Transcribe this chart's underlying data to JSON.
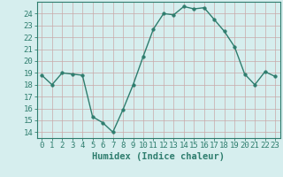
{
  "x": [
    0,
    1,
    2,
    3,
    4,
    5,
    6,
    7,
    8,
    9,
    10,
    11,
    12,
    13,
    14,
    15,
    16,
    17,
    18,
    19,
    20,
    21,
    22,
    23
  ],
  "y": [
    18.8,
    18.0,
    19.0,
    18.9,
    18.8,
    15.3,
    14.8,
    14.0,
    15.9,
    18.0,
    20.4,
    22.7,
    24.0,
    23.9,
    24.6,
    24.4,
    24.5,
    23.5,
    22.5,
    21.2,
    18.9,
    18.0,
    19.1,
    18.7
  ],
  "line_color": "#2e7d6e",
  "marker_color": "#2e7d6e",
  "bg_color": "#d6eeee",
  "grid_color": "#c8a8a8",
  "xlabel": "Humidex (Indice chaleur)",
  "xlim": [
    -0.5,
    23.5
  ],
  "ylim": [
    13.5,
    25.0
  ],
  "yticks": [
    14,
    15,
    16,
    17,
    18,
    19,
    20,
    21,
    22,
    23,
    24
  ],
  "xtick_labels": [
    "0",
    "1",
    "2",
    "3",
    "4",
    "5",
    "6",
    "7",
    "8",
    "9",
    "10",
    "11",
    "12",
    "13",
    "14",
    "15",
    "16",
    "17",
    "18",
    "19",
    "20",
    "21",
    "22",
    "23"
  ],
  "xlabel_fontsize": 7.5,
  "tick_fontsize": 6.5,
  "line_width": 1.0,
  "marker_size": 2.5
}
